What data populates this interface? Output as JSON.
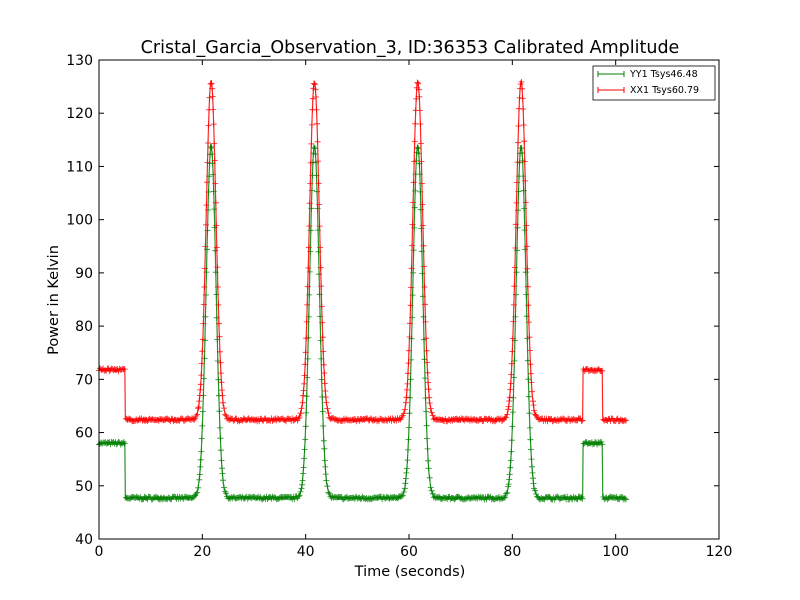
{
  "chart_data": {
    "type": "line",
    "title": "Cristal_Garcia_Observation_3, ID:36353 Calibrated Amplitude",
    "xlabel": "Time (seconds)",
    "ylabel": "Power in Kelvin",
    "xlim": [
      0,
      120
    ],
    "ylim": [
      40,
      130
    ],
    "xticks": [
      "0",
      "20",
      "40",
      "60",
      "80",
      "100",
      "120"
    ],
    "yticks": [
      "40",
      "50",
      "60",
      "70",
      "80",
      "90",
      "100",
      "110",
      "120",
      "130"
    ],
    "grid": false,
    "legend_position": "top-right",
    "marker": "+",
    "series": [
      {
        "name": "YY1 Tsys46.48",
        "color": "#008000",
        "baseline": 47.7,
        "cal_level": 58.0,
        "peak": 114,
        "peak_times": [
          21.7,
          41.7,
          61.7,
          81.7
        ],
        "cal_on_intervals": [
          [
            0,
            5.0
          ],
          [
            93.6,
            97.4
          ]
        ],
        "t_end": 102,
        "points": [
          [
            0,
            58.0
          ],
          [
            4.9,
            58.0
          ],
          [
            5.0,
            47.9
          ],
          [
            15,
            47.7
          ],
          [
            18.5,
            48.5
          ],
          [
            20,
            60
          ],
          [
            21.7,
            114
          ],
          [
            23.4,
            60
          ],
          [
            25,
            48.5
          ],
          [
            30,
            47.5
          ],
          [
            38.5,
            48.5
          ],
          [
            40,
            60
          ],
          [
            41.7,
            114
          ],
          [
            43.4,
            60
          ],
          [
            45,
            48.5
          ],
          [
            50,
            47.5
          ],
          [
            58.5,
            48.5
          ],
          [
            60,
            60
          ],
          [
            61.7,
            114
          ],
          [
            63.4,
            60
          ],
          [
            65,
            48.5
          ],
          [
            70,
            47.8
          ],
          [
            78.5,
            48.5
          ],
          [
            80,
            60
          ],
          [
            81.7,
            113
          ],
          [
            83.4,
            60
          ],
          [
            85,
            48.5
          ],
          [
            93.5,
            47.5
          ],
          [
            93.6,
            58.0
          ],
          [
            97.4,
            58.0
          ],
          [
            97.5,
            47.8
          ],
          [
            102,
            47.8
          ]
        ]
      },
      {
        "name": "XX1 Tsys60.79",
        "color": "#ff0000",
        "baseline": 62.4,
        "cal_level": 71.8,
        "peak": 126,
        "peak_times": [
          21.7,
          41.7,
          61.7,
          81.7
        ],
        "cal_on_intervals": [
          [
            0,
            5.0
          ],
          [
            93.6,
            97.4
          ]
        ],
        "t_end": 102,
        "points": [
          [
            0,
            71.8
          ],
          [
            4.9,
            71.8
          ],
          [
            5.0,
            62.5
          ],
          [
            15,
            62.2
          ],
          [
            18.5,
            63.5
          ],
          [
            20,
            75
          ],
          [
            21.7,
            126
          ],
          [
            23.4,
            75
          ],
          [
            25,
            63
          ],
          [
            30,
            62.3
          ],
          [
            38.5,
            63.2
          ],
          [
            40,
            75
          ],
          [
            41.7,
            126
          ],
          [
            43.4,
            75
          ],
          [
            45,
            62.6
          ],
          [
            50,
            62.1
          ],
          [
            58.5,
            63.0
          ],
          [
            60,
            75
          ],
          [
            61.7,
            126
          ],
          [
            63.4,
            75
          ],
          [
            65,
            62.8
          ],
          [
            70,
            62.3
          ],
          [
            78.5,
            63.3
          ],
          [
            80,
            75
          ],
          [
            81.7,
            126
          ],
          [
            83.4,
            75
          ],
          [
            85,
            62.8
          ],
          [
            93.5,
            62.3
          ],
          [
            93.6,
            71.8
          ],
          [
            97.4,
            71.8
          ],
          [
            97.5,
            62.2
          ],
          [
            102,
            62.2
          ]
        ]
      }
    ]
  }
}
